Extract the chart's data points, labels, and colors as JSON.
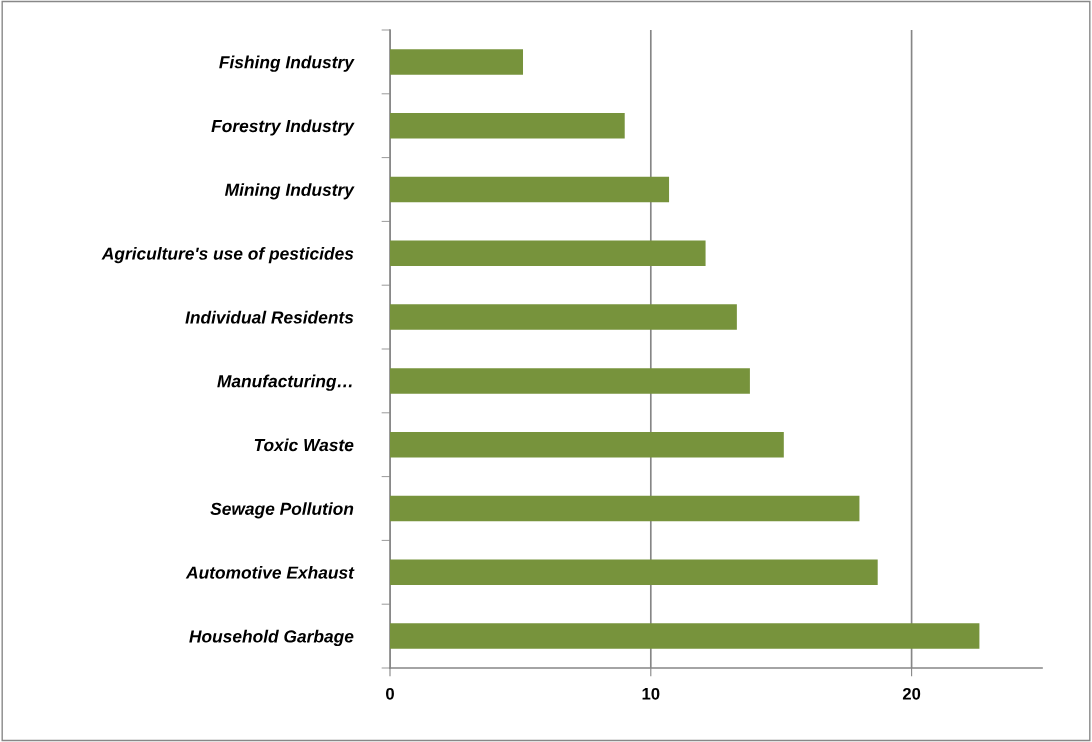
{
  "chart_data": {
    "type": "bar",
    "orientation": "horizontal",
    "categories": [
      "Fishing Industry",
      "Forestry Industry",
      "Mining Industry",
      "Agriculture's use of pesticides",
      "Individual Residents",
      "Manufacturing…",
      "Toxic Waste",
      "Sewage Pollution",
      "Automotive Exhaust",
      "Household Garbage"
    ],
    "values": [
      5.1,
      9.0,
      10.7,
      12.1,
      13.3,
      13.8,
      15.1,
      18.0,
      18.7,
      22.6
    ],
    "color": "#77933c",
    "xlim": [
      0,
      25
    ],
    "xticks": [
      0,
      10,
      20
    ],
    "grid": "x"
  }
}
